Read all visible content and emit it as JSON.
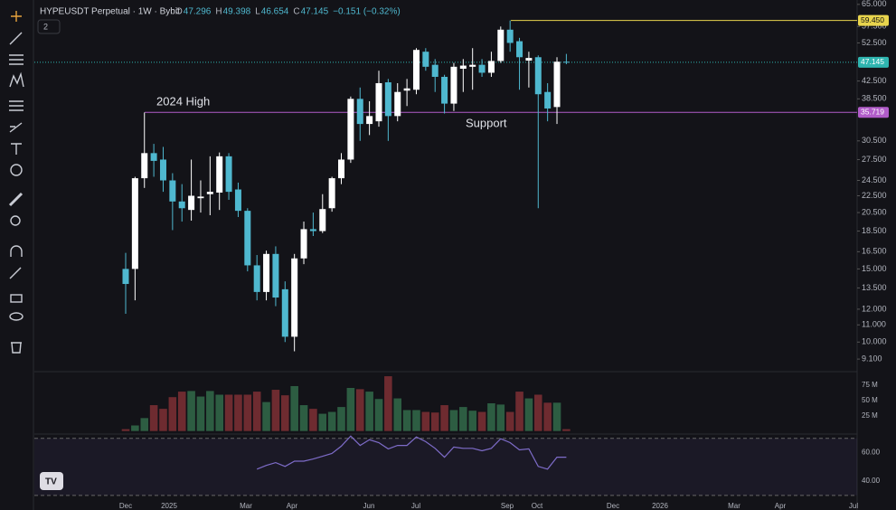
{
  "ui": {
    "indicator_count": 2
  },
  "chart_data": [
    {
      "type": "candlestick",
      "title": "HYPEUSDT Perpetual · 1W · Bybit",
      "ohlc_legend": [
        {
          "label": "O",
          "value": 47.296
        },
        {
          "label": "H",
          "value": 49.398
        },
        {
          "label": "L",
          "value": 46.654
        },
        {
          "label": "C",
          "value": 47.145
        }
      ],
      "change": "−0.151 (−0.32%)",
      "log_scale": true,
      "ylim": [
        8.53,
        66.6
      ],
      "yticks": [
        {
          "value": 65,
          "label": "65.000"
        },
        {
          "value": 57.5,
          "label": "57.500"
        },
        {
          "value": 52.5,
          "label": "52.500"
        },
        {
          "value": 42.5,
          "label": "42.500"
        },
        {
          "value": 38.5,
          "label": "38.500"
        },
        {
          "value": 30.5,
          "label": "30.500"
        },
        {
          "value": 27.5,
          "label": "27.500"
        },
        {
          "value": 24.5,
          "label": "24.500"
        },
        {
          "value": 22.5,
          "label": "22.500"
        },
        {
          "value": 20.5,
          "label": "20.500"
        },
        {
          "value": 18.5,
          "label": "18.500"
        },
        {
          "value": 16.5,
          "label": "16.500"
        },
        {
          "value": 15,
          "label": "15.000"
        },
        {
          "value": 13.5,
          "label": "13.500"
        },
        {
          "value": 12,
          "label": "12.000"
        },
        {
          "value": 11,
          "label": "11.000"
        },
        {
          "value": 10,
          "label": "10.000"
        },
        {
          "value": 9.1,
          "label": "9.100"
        }
      ],
      "categories": [
        "Dec",
        "2025",
        "Mar",
        "Apr",
        "Jun",
        "Jul",
        "Sep",
        "Oct",
        "Dec",
        "2026",
        "Mar",
        "Apr",
        "Jul"
      ],
      "up_color": "#ffffff",
      "down_color": "#4fb8cf",
      "open": [
        15.0,
        15.0,
        24.8,
        28.5,
        27.5,
        24.5,
        21.8,
        20.8,
        22.2,
        22.7,
        22.9,
        28.0,
        23.3,
        20.7,
        15.3,
        13.2,
        16.3,
        13.4,
        10.3,
        15.9,
        18.7,
        18.5,
        21.0,
        24.8,
        27.5,
        38.5,
        33.5,
        34.0,
        42.2,
        35.0,
        40.3,
        40.5,
        50.0,
        46.5,
        43.5,
        37.5,
        45.5,
        46.0,
        46.5,
        44.5,
        47.5,
        56.5,
        53.0,
        47.6,
        48.5,
        40.0,
        36.8,
        47.296
      ],
      "high": [
        16.4,
        25.0,
        35.7,
        30.0,
        29.5,
        25.5,
        24.0,
        27.5,
        24.5,
        28.0,
        28.6,
        28.5,
        24.2,
        21.0,
        16.2,
        16.6,
        17.0,
        14.0,
        16.3,
        19.5,
        20.5,
        22.7,
        25.0,
        28.5,
        39.0,
        41.0,
        38.0,
        45.0,
        43.0,
        42.0,
        43.0,
        51.0,
        51.0,
        48.0,
        44.0,
        47.0,
        48.0,
        51.0,
        48.0,
        50.0,
        57.5,
        59.45,
        54.0,
        50.0,
        49.0,
        42.0,
        48.5,
        49.398
      ],
      "low": [
        11.7,
        12.6,
        23.5,
        25.0,
        23.0,
        18.6,
        19.5,
        19.6,
        20.5,
        20.2,
        20.8,
        22.0,
        20.0,
        14.8,
        12.6,
        12.6,
        12.2,
        10.0,
        9.5,
        15.4,
        18.0,
        18.3,
        20.6,
        24.0,
        27.0,
        30.5,
        31.5,
        33.0,
        30.5,
        34.0,
        37.0,
        39.5,
        45.0,
        40.0,
        35.5,
        36.0,
        40.0,
        40.5,
        43.5,
        43.5,
        47.0,
        50.0,
        40.5,
        41.0,
        21.0,
        34.0,
        33.5,
        46.654
      ],
      "close": [
        13.8,
        24.8,
        28.5,
        27.3,
        24.5,
        21.8,
        21.0,
        22.5,
        22.4,
        23.0,
        28.0,
        23.0,
        20.7,
        15.3,
        13.2,
        16.3,
        12.8,
        10.3,
        15.9,
        18.7,
        18.5,
        20.9,
        24.8,
        27.5,
        38.5,
        33.5,
        35.0,
        42.0,
        35.0,
        40.0,
        40.8,
        50.5,
        46.0,
        43.5,
        37.5,
        46.0,
        46.3,
        46.5,
        44.5,
        47.5,
        56.5,
        52.5,
        48.5,
        48.3,
        39.5,
        36.5,
        47.3,
        47.145
      ],
      "levels": [
        {
          "value": 59.45,
          "label": "59.450",
          "color": "#e8d44d"
        },
        {
          "value": 47.145,
          "label": "47.145",
          "color": "#2fb5b0"
        },
        {
          "value": 35.719,
          "label": "35.719",
          "color": "#b15cc9"
        }
      ],
      "annotations": [
        "2024 High",
        "Support"
      ]
    },
    {
      "type": "bar",
      "ylim": [
        0,
        92.6
      ],
      "yticks": [
        {
          "value": 75,
          "label": "75 M"
        },
        {
          "value": 50,
          "label": "50 M"
        },
        {
          "value": 25,
          "label": "25 M"
        }
      ],
      "up_color": "#2d5d42",
      "down_color": "#6e2b30",
      "values": [
        4,
        10,
        22,
        43,
        37,
        56,
        65,
        66,
        57,
        66,
        60,
        60,
        60,
        60,
        65,
        48,
        68,
        59,
        74,
        43,
        37,
        29,
        32,
        40,
        71,
        69,
        65,
        53,
        90,
        54,
        35,
        35,
        32,
        31,
        43,
        35,
        40,
        34,
        32,
        46,
        44,
        32,
        65,
        54,
        60,
        47,
        47,
        4
      ]
    },
    {
      "type": "line",
      "ylim": [
        28,
        73
      ],
      "yticks": [
        {
          "value": 60,
          "label": "60.00"
        },
        {
          "value": 40,
          "label": "40.00"
        }
      ],
      "bands": [
        70,
        30
      ],
      "color": "#7e6cc9",
      "values": [
        null,
        null,
        null,
        null,
        null,
        null,
        null,
        null,
        null,
        null,
        null,
        null,
        null,
        null,
        48.4,
        51,
        53,
        50.3,
        54,
        54,
        55.5,
        57.4,
        59.4,
        64.5,
        71.6,
        65,
        69,
        67,
        62.6,
        65,
        65,
        71,
        67.7,
        63,
        56.8,
        63.9,
        63,
        63,
        61.3,
        63,
        69.7,
        67,
        61.9,
        62.6,
        50.3,
        48.4,
        56.8,
        56.8
      ]
    }
  ]
}
